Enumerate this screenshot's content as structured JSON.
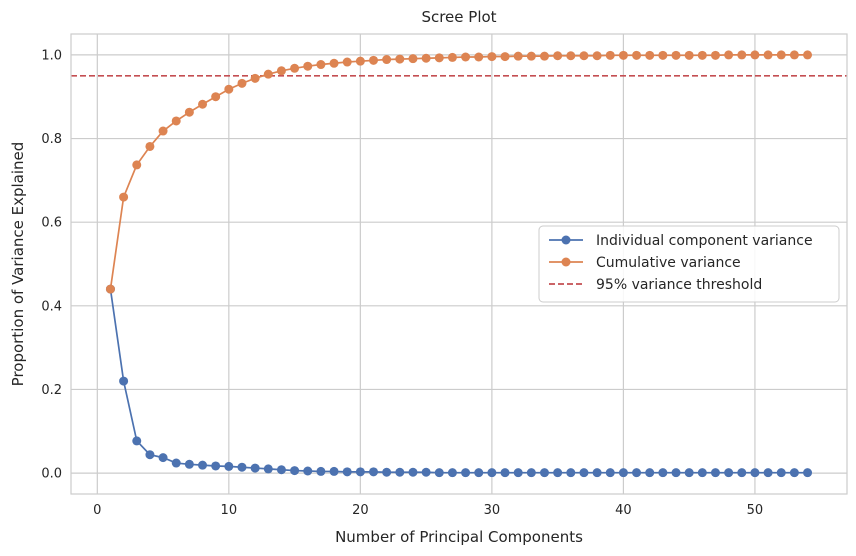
{
  "chart_data": {
    "type": "line",
    "title": "Scree Plot",
    "xlabel": "Number of Principal Components",
    "ylabel": "Proportion of Variance Explained",
    "xlim": [
      -2,
      57
    ],
    "ylim": [
      -0.05,
      1.05
    ],
    "xticks": [
      0,
      10,
      20,
      30,
      40,
      50
    ],
    "yticks": [
      0.0,
      0.2,
      0.4,
      0.6,
      0.8,
      1.0
    ],
    "xtick_labels": [
      "0",
      "10",
      "20",
      "30",
      "40",
      "50"
    ],
    "ytick_labels": [
      "0.0",
      "0.2",
      "0.4",
      "0.6",
      "0.8",
      "1.0"
    ],
    "grid": true,
    "legend_position": "center-right",
    "x": [
      1,
      2,
      3,
      4,
      5,
      6,
      7,
      8,
      9,
      10,
      11,
      12,
      13,
      14,
      15,
      16,
      17,
      18,
      19,
      20,
      21,
      22,
      23,
      24,
      25,
      26,
      27,
      28,
      29,
      30,
      31,
      32,
      33,
      34,
      35,
      36,
      37,
      38,
      39,
      40,
      41,
      42,
      43,
      44,
      45,
      46,
      47,
      48,
      49,
      50,
      51,
      52,
      53,
      54
    ],
    "series": [
      {
        "name": "Individual component variance",
        "color": "#4c72b0",
        "marker": "circle",
        "values": [
          0.44,
          0.22,
          0.077,
          0.044,
          0.037,
          0.024,
          0.021,
          0.019,
          0.017,
          0.016,
          0.014,
          0.012,
          0.01,
          0.008,
          0.006,
          0.005,
          0.004,
          0.004,
          0.003,
          0.003,
          0.003,
          0.002,
          0.002,
          0.002,
          0.002,
          0.001,
          0.001,
          0.001,
          0.001,
          0.001,
          0.001,
          0.001,
          0.001,
          0.001,
          0.001,
          0.001,
          0.001,
          0.001,
          0.001,
          0.001,
          0.001,
          0.001,
          0.001,
          0.001,
          0.001,
          0.001,
          0.001,
          0.001,
          0.001,
          0.001,
          0.001,
          0.001,
          0.001,
          0.001
        ]
      },
      {
        "name": "Cumulative variance",
        "color": "#dd8452",
        "marker": "circle",
        "values": [
          0.44,
          0.66,
          0.737,
          0.781,
          0.818,
          0.842,
          0.863,
          0.882,
          0.9,
          0.918,
          0.932,
          0.944,
          0.954,
          0.962,
          0.968,
          0.973,
          0.977,
          0.98,
          0.983,
          0.985,
          0.987,
          0.989,
          0.99,
          0.991,
          0.992,
          0.993,
          0.994,
          0.995,
          0.995,
          0.996,
          0.996,
          0.997,
          0.997,
          0.997,
          0.998,
          0.998,
          0.998,
          0.998,
          0.999,
          0.999,
          0.999,
          0.999,
          0.999,
          0.999,
          0.999,
          0.999,
          0.999,
          1.0,
          1.0,
          1.0,
          1.0,
          1.0,
          1.0,
          1.0
        ]
      }
    ],
    "threshold": {
      "name": "95% variance threshold",
      "value": 0.95,
      "color": "#c44e52",
      "style": "dashed"
    }
  }
}
